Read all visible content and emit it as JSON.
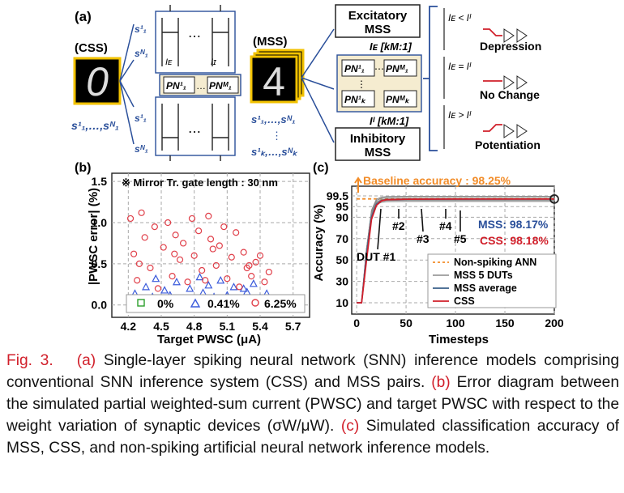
{
  "figure": {
    "panel_a": {
      "label": "(a)",
      "css_label": "(CSS)",
      "mss_label": "(MSS)",
      "css_digit": "0",
      "mss_digit": "4",
      "css_inputs": "s¹₁,…,sᴺ₁",
      "s1_1": "s",
      "s1_N": "s",
      "pn_row_1": [
        "PN¹₁",
        "…",
        "PNᴹ₁"
      ],
      "pn_grid": [
        "PN¹₁",
        "PNᴹ₁",
        "PN¹ₖ",
        "PNᴹₖ"
      ],
      "excitatory_mss": [
        "Excitatory",
        "MSS"
      ],
      "inhibitory_mss": [
        "Inhibitory",
        "MSS"
      ],
      "ratio_e": "Iᴇ [kM:1]",
      "ratio_i": "Iᴵ [kM:1]",
      "modes": [
        {
          "condition": "Iᴇ < Iᴵ",
          "label": "Depression"
        },
        {
          "condition": "Iᴇ = Iᴵ",
          "label": "No Change"
        },
        {
          "condition": "Iᴇ > Iᴵ",
          "label": "Potentiation"
        }
      ],
      "mss_inputs_top": "s¹₁,…,sᴺ₁",
      "mss_inputs_bottom": "s¹ₖ,…,sᴺₖ"
    },
    "panel_b": {
      "label": "(b)",
      "note": "※ Mirror Tr. gate length : 30 nm",
      "xlabel": "Target PWSC (μA)",
      "ylabel": "|PWSC error| (%)",
      "legend": [
        "0%",
        "0.41%",
        "6.25%"
      ],
      "colors": {
        "s0": "#2ca02c",
        "s1": "#3b5bdb",
        "s2": "#e0404a"
      },
      "chart_data": {
        "type": "scatter",
        "xlim": [
          4.05,
          5.85
        ],
        "ylim": [
          -0.15,
          1.6
        ],
        "xticks": [
          "4.2",
          "4.5",
          "4.8",
          "5.1",
          "5.4",
          "5.7"
        ],
        "yticks": [
          "0.0",
          "0.5",
          "1.0",
          "1.5"
        ],
        "series": [
          {
            "name": "0%",
            "marker": "square",
            "points": [
              [
                4.22,
                0.02
              ],
              [
                4.28,
                0.03
              ],
              [
                4.35,
                0.01
              ],
              [
                4.42,
                0.04
              ],
              [
                4.5,
                0.02
              ],
              [
                4.58,
                0.03
              ],
              [
                4.65,
                0.02
              ],
              [
                4.72,
                0.04
              ],
              [
                4.8,
                0.01
              ],
              [
                4.88,
                0.03
              ],
              [
                4.95,
                0.02
              ],
              [
                5.02,
                0.04
              ],
              [
                5.1,
                0.02
              ],
              [
                5.18,
                0.03
              ],
              [
                5.25,
                0.01
              ],
              [
                5.32,
                0.03
              ],
              [
                5.4,
                0.02
              ],
              [
                5.48,
                0.02
              ],
              [
                4.25,
                0.05
              ],
              [
                4.6,
                0.05
              ],
              [
                4.9,
                0.05
              ],
              [
                5.2,
                0.05
              ],
              [
                5.45,
                0.04
              ]
            ]
          },
          {
            "name": "0.41%",
            "marker": "triangle",
            "points": [
              [
                4.22,
                0.08
              ],
              [
                4.26,
                0.14
              ],
              [
                4.31,
                0.05
              ],
              [
                4.36,
                0.22
              ],
              [
                4.42,
                0.1
              ],
              [
                4.48,
                0.06
              ],
              [
                4.53,
                0.18
              ],
              [
                4.58,
                0.12
              ],
              [
                4.64,
                0.28
              ],
              [
                4.7,
                0.08
              ],
              [
                4.76,
                0.2
              ],
              [
                4.82,
                0.05
              ],
              [
                4.88,
                0.15
              ],
              [
                4.93,
                0.24
              ],
              [
                4.98,
                0.1
              ],
              [
                5.04,
                0.3
              ],
              [
                5.1,
                0.12
              ],
              [
                5.16,
                0.22
              ],
              [
                5.22,
                0.06
              ],
              [
                5.28,
                0.16
              ],
              [
                5.34,
                0.26
              ],
              [
                5.4,
                0.09
              ],
              [
                5.46,
                0.14
              ],
              [
                4.45,
                0.32
              ],
              [
                4.85,
                0.34
              ],
              [
                5.25,
                0.2
              ]
            ]
          },
          {
            "name": "6.25%",
            "marker": "circle",
            "points": [
              [
                4.22,
                1.05
              ],
              [
                4.25,
                0.62
              ],
              [
                4.28,
                0.3
              ],
              [
                4.32,
                1.12
              ],
              [
                4.35,
                0.82
              ],
              [
                4.4,
                0.45
              ],
              [
                4.44,
                0.95
              ],
              [
                4.47,
                0.2
              ],
              [
                4.52,
                0.7
              ],
              [
                4.56,
                1.0
              ],
              [
                4.6,
                0.35
              ],
              [
                4.63,
                0.85
              ],
              [
                4.67,
                0.55
              ],
              [
                4.7,
                0.75
              ],
              [
                4.74,
                0.28
              ],
              [
                4.78,
                1.05
              ],
              [
                4.8,
                0.6
              ],
              [
                4.84,
                0.9
              ],
              [
                4.87,
                0.42
              ],
              [
                4.9,
                0.3
              ],
              [
                4.93,
                1.08
              ],
              [
                4.97,
                0.68
              ],
              [
                5.0,
                0.48
              ],
              [
                5.03,
                0.72
              ],
              [
                5.07,
                0.95
              ],
              [
                5.1,
                0.32
              ],
              [
                5.14,
                0.58
              ],
              [
                5.18,
                0.88
              ],
              [
                5.21,
                0.22
              ],
              [
                5.25,
                0.64
              ],
              [
                5.28,
                0.45
              ],
              [
                5.32,
                0.35
              ],
              [
                5.36,
                0.52
              ],
              [
                5.4,
                0.6
              ],
              [
                5.44,
                0.28
              ],
              [
                5.48,
                0.4
              ],
              [
                4.3,
                0.5
              ],
              [
                4.62,
                0.62
              ],
              [
                4.95,
                0.8
              ],
              [
                5.3,
                0.48
              ]
            ]
          }
        ]
      }
    },
    "panel_c": {
      "label": "(c)",
      "baseline": "Baseline accuracy : 98.25%",
      "xlabel": "Timesteps",
      "ylabel": "Accuracy (%)",
      "annotations": [
        "DUT #1",
        "#2",
        "#3",
        "#4",
        "#5"
      ],
      "mss_result": "MSS: 98.17%",
      "css_result": "CSS: 98.18%",
      "legend": [
        "Non-spiking ANN",
        "MSS 5 DUTs",
        "MSS average",
        "CSS"
      ],
      "colors": {
        "ann": "#f28c28",
        "dut": "#8a8a8a",
        "avg": "#3a5f8a",
        "css": "#d11f2a",
        "baseline_text": "#f28c28",
        "mss_text": "#2a4f9a",
        "css_text": "#d11f2a"
      },
      "chart_data": {
        "type": "line",
        "xlim": [
          -5,
          200
        ],
        "yticks": [
          "10",
          "30",
          "50",
          "70",
          "90",
          "95",
          "99.5"
        ],
        "xticks": [
          "0",
          "50",
          "100",
          "150",
          "200"
        ],
        "series": [
          {
            "name": "Non-spiking ANN",
            "x": [
              0,
              200
            ],
            "y": [
              98.25,
              98.25
            ]
          },
          {
            "name": "MSS 5 DUTs",
            "x": [
              0,
              5,
              10,
              15,
              20,
              25,
              30,
              50,
              100,
              150,
              200
            ],
            "y": [
              10,
              10,
              60,
              92,
              97,
              97.8,
              98.1,
              98.2,
              98.22,
              98.2,
              98.2
            ]
          },
          {
            "name": "MSS average",
            "x": [
              0,
              5,
              10,
              15,
              20,
              25,
              30,
              50,
              100,
              150,
              200
            ],
            "y": [
              10,
              10,
              55,
              90,
              96,
              97.5,
              97.9,
              98.1,
              98.15,
              98.17,
              98.17
            ]
          },
          {
            "name": "CSS",
            "x": [
              0,
              5,
              10,
              15,
              20,
              25,
              30,
              50,
              100,
              150,
              200
            ],
            "y": [
              10,
              10,
              50,
              88,
              95.5,
              97.4,
              97.9,
              98.1,
              98.16,
              98.18,
              98.18
            ]
          }
        ]
      }
    }
  },
  "caption": {
    "fig": "Fig. 3.",
    "a_tag": "(a)",
    "a_text": " Single-layer spiking neural network (SNN) inference models comprising conventional SNN inference system (CSS) and MSS pairs. ",
    "b_tag": "(b)",
    "b_text": " Error diagram between the simulated partial weighted-sum current (PWSC) and target PWSC with respect to the weight variation of synaptic devices (σW/μW). ",
    "c_tag": "(c)",
    "c_text": " Simulated classification accuracy of MSS, CSS, and non-spiking artificial neural network inference models."
  }
}
